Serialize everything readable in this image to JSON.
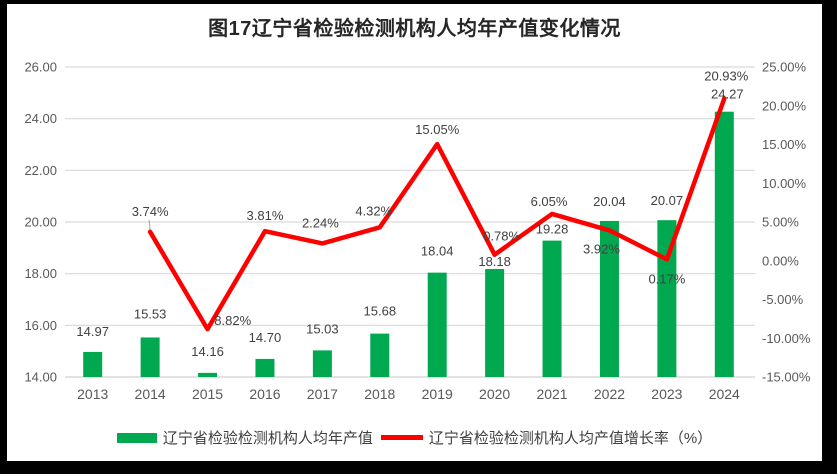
{
  "window": {
    "type": "static-chart-screenshot",
    "frame_color": "#000000",
    "background_color": "#ffffff"
  },
  "chart_data": {
    "type": "bar+line",
    "title": "图17辽宁省检验检测机构人均年产值变化情况",
    "categories": [
      "2013",
      "2014",
      "2015",
      "2016",
      "2017",
      "2018",
      "2019",
      "2020",
      "2021",
      "2022",
      "2023",
      "2024"
    ],
    "series": [
      {
        "name": "辽宁省检验检测机构人均年产值",
        "type": "bar",
        "axis": "left",
        "color": "#00A850",
        "values": [
          14.97,
          15.53,
          14.16,
          14.7,
          15.03,
          15.68,
          18.04,
          18.18,
          19.28,
          20.04,
          20.07,
          24.27
        ],
        "labels": [
          "14.97",
          "15.53",
          "14.16",
          "14.70",
          "15.03",
          "15.68",
          "18.04",
          "18.18",
          "19.28",
          "20.04",
          "20.07",
          "24.27"
        ]
      },
      {
        "name": "辽宁省检验检测机构人均产值增长率（%）",
        "type": "line",
        "axis": "right",
        "color": "#FF0000",
        "values": [
          null,
          3.74,
          -8.82,
          3.81,
          2.24,
          4.32,
          15.05,
          0.78,
          6.05,
          3.92,
          0.17,
          20.93
        ],
        "labels": [
          "",
          "3.74%",
          "-8.82%",
          "3.81%",
          "2.24%",
          "4.32%",
          "15.05%",
          "0.78%",
          "6.05%",
          "3.92%",
          "0.17%",
          "20.93%"
        ]
      }
    ],
    "left_axis": {
      "min": 14,
      "max": 26,
      "step": 2,
      "tick_labels": [
        "26.00",
        "24.00",
        "22.00",
        "20.00",
        "18.00",
        "16.00",
        "14.00"
      ]
    },
    "right_axis": {
      "min": -15,
      "max": 25,
      "step": 5,
      "tick_labels": [
        "25.00%",
        "20.00%",
        "15.00%",
        "10.00%",
        "5.00%",
        "0.00%",
        "-5.00%",
        "-10.00%",
        "-15.00%"
      ]
    },
    "grid": "horizontal",
    "gridline_color": "#D9D9D9",
    "axis_text_color": "#595959",
    "data_label_color": "#404040",
    "legend": {
      "position": "bottom",
      "entries": [
        {
          "label": "辽宁省检验检测机构人均年产值",
          "swatch": "bar",
          "color": "#00A850"
        },
        {
          "label": "辽宁省检验检测机构人均产值增长率（%）",
          "swatch": "line",
          "color": "#FF0000"
        }
      ]
    }
  }
}
